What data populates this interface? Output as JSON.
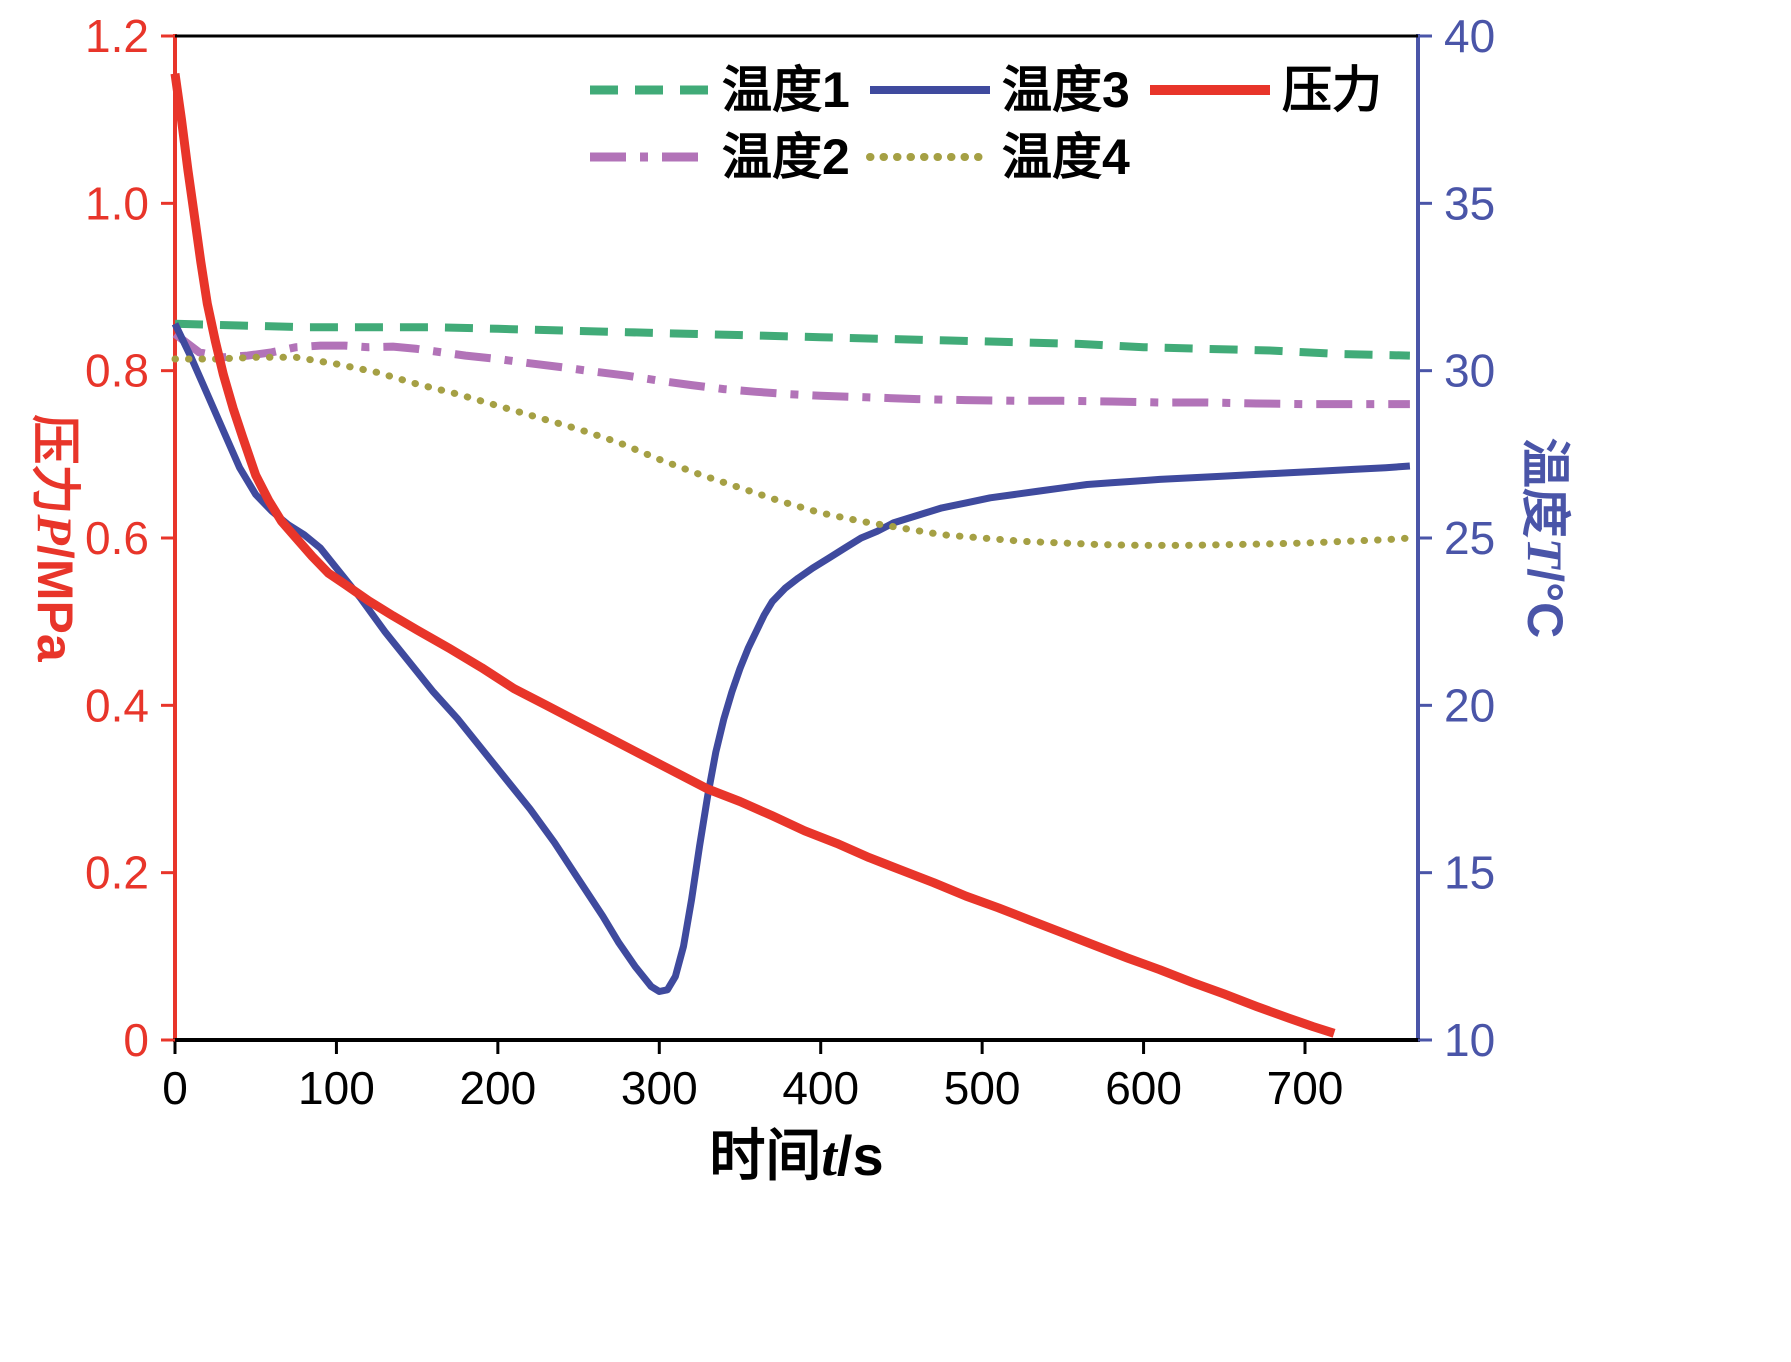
{
  "figure": {
    "background": "#ffffff"
  },
  "chart_data": {
    "type": "line",
    "title": "",
    "grid": false,
    "legend_position": "top-center",
    "x_axis": {
      "label_prefix": "时间",
      "label_variable": "t",
      "label_suffix": "/s",
      "min": 0,
      "max": 770,
      "ticks": [
        "0",
        "100",
        "200",
        "300",
        "400",
        "500",
        "600",
        "700"
      ],
      "tick_values": [
        0,
        100,
        200,
        300,
        400,
        500,
        600,
        700
      ],
      "color": "#000000"
    },
    "y_axis_left": {
      "label_prefix": "压力",
      "label_variable": "P",
      "label_suffix": "/MPa",
      "min": 0,
      "max": 1.2,
      "ticks": [
        "0",
        "0.2",
        "0.4",
        "0.6",
        "0.8",
        "1.0",
        "1.2"
      ],
      "tick_values": [
        0,
        0.2,
        0.4,
        0.6,
        0.8,
        1.0,
        1.2
      ],
      "color": "#e8352a"
    },
    "y_axis_right": {
      "label_prefix": "温度",
      "label_variable": "T",
      "label_suffix": "/°C",
      "min": 10,
      "max": 40,
      "ticks": [
        "10",
        "15",
        "20",
        "25",
        "30",
        "35",
        "40"
      ],
      "tick_values": [
        10,
        15,
        20,
        25,
        30,
        35,
        40
      ],
      "color": "#4a55a8"
    },
    "legend": {
      "rows": [
        [
          0,
          2,
          4
        ],
        [
          1,
          3
        ]
      ]
    },
    "series": [
      {
        "name": "温度1",
        "axis": "right",
        "unit": "°C",
        "color": "#41ab78",
        "style": "dashed",
        "width": 8,
        "points": [
          [
            0,
            31.4
          ],
          [
            40,
            31.35
          ],
          [
            80,
            31.3
          ],
          [
            120,
            31.3
          ],
          [
            160,
            31.3
          ],
          [
            200,
            31.25
          ],
          [
            240,
            31.2
          ],
          [
            280,
            31.15
          ],
          [
            320,
            31.1
          ],
          [
            360,
            31.05
          ],
          [
            400,
            31.0
          ],
          [
            440,
            30.95
          ],
          [
            480,
            30.9
          ],
          [
            520,
            30.85
          ],
          [
            560,
            30.8
          ],
          [
            600,
            30.7
          ],
          [
            640,
            30.65
          ],
          [
            680,
            30.6
          ],
          [
            720,
            30.5
          ],
          [
            765,
            30.45
          ]
        ]
      },
      {
        "name": "温度2",
        "axis": "right",
        "unit": "°C",
        "color": "#b273b8",
        "style": "dashdot",
        "width": 8,
        "points": [
          [
            0,
            31.1
          ],
          [
            15,
            30.55
          ],
          [
            30,
            30.4
          ],
          [
            45,
            30.45
          ],
          [
            60,
            30.55
          ],
          [
            75,
            30.7
          ],
          [
            90,
            30.75
          ],
          [
            105,
            30.75
          ],
          [
            120,
            30.7
          ],
          [
            135,
            30.72
          ],
          [
            150,
            30.65
          ],
          [
            165,
            30.55
          ],
          [
            180,
            30.45
          ],
          [
            200,
            30.35
          ],
          [
            220,
            30.22
          ],
          [
            240,
            30.1
          ],
          [
            260,
            29.97
          ],
          [
            280,
            29.85
          ],
          [
            300,
            29.7
          ],
          [
            320,
            29.57
          ],
          [
            340,
            29.45
          ],
          [
            360,
            29.37
          ],
          [
            380,
            29.3
          ],
          [
            400,
            29.25
          ],
          [
            430,
            29.2
          ],
          [
            460,
            29.15
          ],
          [
            490,
            29.12
          ],
          [
            520,
            29.1
          ],
          [
            550,
            29.1
          ],
          [
            580,
            29.08
          ],
          [
            610,
            29.05
          ],
          [
            640,
            29.05
          ],
          [
            670,
            29.02
          ],
          [
            700,
            29.0
          ],
          [
            730,
            29.0
          ],
          [
            765,
            29.0
          ]
        ]
      },
      {
        "name": "温度3",
        "axis": "right",
        "unit": "°C",
        "color": "#3f4a9e",
        "style": "solid",
        "width": 7,
        "points": [
          [
            0,
            31.4
          ],
          [
            10,
            30.4
          ],
          [
            20,
            29.3
          ],
          [
            30,
            28.2
          ],
          [
            40,
            27.1
          ],
          [
            50,
            26.3
          ],
          [
            60,
            25.8
          ],
          [
            70,
            25.4
          ],
          [
            80,
            25.1
          ],
          [
            90,
            24.7
          ],
          [
            100,
            24.1
          ],
          [
            115,
            23.2
          ],
          [
            130,
            22.2
          ],
          [
            145,
            21.3
          ],
          [
            160,
            20.4
          ],
          [
            175,
            19.6
          ],
          [
            190,
            18.7
          ],
          [
            205,
            17.8
          ],
          [
            220,
            16.9
          ],
          [
            235,
            15.9
          ],
          [
            250,
            14.8
          ],
          [
            265,
            13.7
          ],
          [
            275,
            12.9
          ],
          [
            285,
            12.2
          ],
          [
            295,
            11.6
          ],
          [
            300,
            11.45
          ],
          [
            305,
            11.5
          ],
          [
            310,
            11.9
          ],
          [
            315,
            12.8
          ],
          [
            320,
            14.2
          ],
          [
            325,
            15.8
          ],
          [
            330,
            17.3
          ],
          [
            335,
            18.6
          ],
          [
            340,
            19.6
          ],
          [
            345,
            20.4
          ],
          [
            350,
            21.1
          ],
          [
            355,
            21.7
          ],
          [
            360,
            22.2
          ],
          [
            365,
            22.7
          ],
          [
            370,
            23.1
          ],
          [
            378,
            23.5
          ],
          [
            386,
            23.8
          ],
          [
            395,
            24.1
          ],
          [
            405,
            24.4
          ],
          [
            415,
            24.7
          ],
          [
            425,
            25.0
          ],
          [
            435,
            25.2
          ],
          [
            445,
            25.45
          ],
          [
            455,
            25.6
          ],
          [
            465,
            25.75
          ],
          [
            475,
            25.9
          ],
          [
            490,
            26.05
          ],
          [
            505,
            26.2
          ],
          [
            520,
            26.3
          ],
          [
            535,
            26.4
          ],
          [
            550,
            26.5
          ],
          [
            565,
            26.6
          ],
          [
            580,
            26.65
          ],
          [
            595,
            26.7
          ],
          [
            610,
            26.75
          ],
          [
            630,
            26.8
          ],
          [
            650,
            26.85
          ],
          [
            670,
            26.9
          ],
          [
            690,
            26.95
          ],
          [
            710,
            27.0
          ],
          [
            730,
            27.05
          ],
          [
            750,
            27.1
          ],
          [
            765,
            27.15
          ]
        ]
      },
      {
        "name": "温度4",
        "axis": "right",
        "unit": "°C",
        "color": "#a5a044",
        "style": "dotted",
        "width": 7,
        "points": [
          [
            0,
            30.35
          ],
          [
            25,
            30.35
          ],
          [
            50,
            30.4
          ],
          [
            75,
            30.4
          ],
          [
            100,
            30.2
          ],
          [
            125,
            29.95
          ],
          [
            150,
            29.6
          ],
          [
            175,
            29.3
          ],
          [
            200,
            28.95
          ],
          [
            225,
            28.6
          ],
          [
            250,
            28.25
          ],
          [
            275,
            27.85
          ],
          [
            300,
            27.35
          ],
          [
            325,
            26.9
          ],
          [
            350,
            26.5
          ],
          [
            375,
            26.1
          ],
          [
            400,
            25.75
          ],
          [
            425,
            25.5
          ],
          [
            450,
            25.3
          ],
          [
            475,
            25.1
          ],
          [
            500,
            25.0
          ],
          [
            525,
            24.9
          ],
          [
            550,
            24.85
          ],
          [
            575,
            24.8
          ],
          [
            600,
            24.78
          ],
          [
            625,
            24.78
          ],
          [
            650,
            24.8
          ],
          [
            675,
            24.82
          ],
          [
            700,
            24.85
          ],
          [
            725,
            24.9
          ],
          [
            750,
            24.95
          ],
          [
            765,
            25.0
          ]
        ]
      },
      {
        "name": "压力",
        "axis": "left",
        "unit": "MPa",
        "color": "#e8352a",
        "style": "solid",
        "width": 9,
        "points": [
          [
            0,
            1.155
          ],
          [
            4,
            1.1
          ],
          [
            8,
            1.04
          ],
          [
            12,
            0.985
          ],
          [
            16,
            0.93
          ],
          [
            20,
            0.88
          ],
          [
            25,
            0.835
          ],
          [
            30,
            0.795
          ],
          [
            36,
            0.755
          ],
          [
            42,
            0.72
          ],
          [
            50,
            0.675
          ],
          [
            58,
            0.645
          ],
          [
            66,
            0.62
          ],
          [
            75,
            0.6
          ],
          [
            85,
            0.578
          ],
          [
            95,
            0.558
          ],
          [
            105,
            0.545
          ],
          [
            120,
            0.525
          ],
          [
            135,
            0.507
          ],
          [
            150,
            0.49
          ],
          [
            170,
            0.468
          ],
          [
            190,
            0.445
          ],
          [
            210,
            0.42
          ],
          [
            230,
            0.4
          ],
          [
            250,
            0.38
          ],
          [
            270,
            0.36
          ],
          [
            290,
            0.34
          ],
          [
            310,
            0.32
          ],
          [
            330,
            0.3
          ],
          [
            350,
            0.285
          ],
          [
            370,
            0.268
          ],
          [
            390,
            0.25
          ],
          [
            410,
            0.235
          ],
          [
            430,
            0.218
          ],
          [
            450,
            0.203
          ],
          [
            470,
            0.188
          ],
          [
            490,
            0.172
          ],
          [
            510,
            0.158
          ],
          [
            530,
            0.143
          ],
          [
            550,
            0.128
          ],
          [
            570,
            0.113
          ],
          [
            590,
            0.098
          ],
          [
            610,
            0.084
          ],
          [
            630,
            0.069
          ],
          [
            650,
            0.055
          ],
          [
            670,
            0.04
          ],
          [
            690,
            0.026
          ],
          [
            705,
            0.016
          ],
          [
            718,
            0.008
          ]
        ]
      }
    ]
  }
}
